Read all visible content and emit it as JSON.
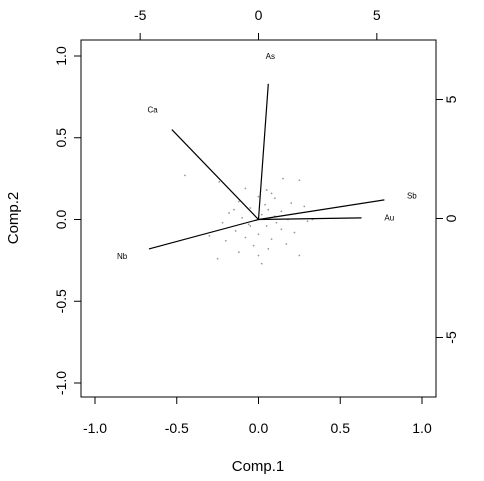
{
  "chart_data": {
    "type": "biplot",
    "xlabel": "Comp.1",
    "ylabel": "Comp.2",
    "xlim": [
      -1.0,
      1.0
    ],
    "ylim": [
      -1.0,
      1.0
    ],
    "xticks": [
      "-1.0",
      "-0.5",
      "0.0",
      "0.5",
      "1.0"
    ],
    "yticks": [
      "-1.0",
      "-0.5",
      "0.0",
      "0.5",
      "1.0"
    ],
    "top_axis_range": [
      -7.5,
      7.5
    ],
    "top_ticks": [
      "-5",
      "0",
      "5"
    ],
    "right_axis_range": [
      -7.5,
      7.5
    ],
    "right_ticks": [
      "-5",
      "0",
      "5"
    ],
    "grid": false,
    "loadings": [
      {
        "name": "As",
        "x": 0.06,
        "y": 0.83
      },
      {
        "name": "Ca",
        "x": -0.53,
        "y": 0.55
      },
      {
        "name": "Sb",
        "x": 0.77,
        "y": 0.12
      },
      {
        "name": "Au",
        "x": 0.63,
        "y": 0.01
      },
      {
        "name": "Nb",
        "x": -0.67,
        "y": -0.18
      }
    ],
    "scores": [
      [
        -0.45,
        0.27
      ],
      [
        -0.24,
        0.23
      ],
      [
        0.15,
        0.25
      ],
      [
        0.25,
        0.24
      ],
      [
        -0.08,
        0.19
      ],
      [
        0.05,
        0.18
      ],
      [
        0.0,
        0.14
      ],
      [
        0.1,
        0.13
      ],
      [
        -0.12,
        0.11
      ],
      [
        0.2,
        0.1
      ],
      [
        0.28,
        0.08
      ],
      [
        -0.05,
        0.07
      ],
      [
        0.06,
        0.06
      ],
      [
        0.14,
        0.05
      ],
      [
        -0.18,
        0.04
      ],
      [
        0.02,
        0.03
      ],
      [
        0.1,
        0.02
      ],
      [
        -0.1,
        0.01
      ],
      [
        0.18,
        0.0
      ],
      [
        0.3,
        -0.01
      ],
      [
        -0.22,
        -0.02
      ],
      [
        -0.06,
        -0.03
      ],
      [
        0.05,
        -0.04
      ],
      [
        0.14,
        -0.06
      ],
      [
        -0.14,
        -0.07
      ],
      [
        0.22,
        -0.08
      ],
      [
        0.0,
        -0.09
      ],
      [
        -0.08,
        -0.11
      ],
      [
        0.08,
        -0.12
      ],
      [
        -0.2,
        -0.13
      ],
      [
        0.17,
        -0.15
      ],
      [
        -0.03,
        -0.16
      ],
      [
        0.06,
        -0.18
      ],
      [
        -0.12,
        -0.2
      ],
      [
        0.25,
        -0.22
      ],
      [
        -0.25,
        -0.24
      ],
      [
        0.02,
        -0.27
      ],
      [
        -0.05,
        -0.04
      ],
      [
        0.04,
        0.09
      ],
      [
        0.11,
        -0.02
      ],
      [
        -0.15,
        0.06
      ],
      [
        0.08,
        0.16
      ],
      [
        0.33,
        0.0
      ],
      [
        -0.3,
        -0.1
      ],
      [
        0.0,
        -0.22
      ]
    ]
  }
}
